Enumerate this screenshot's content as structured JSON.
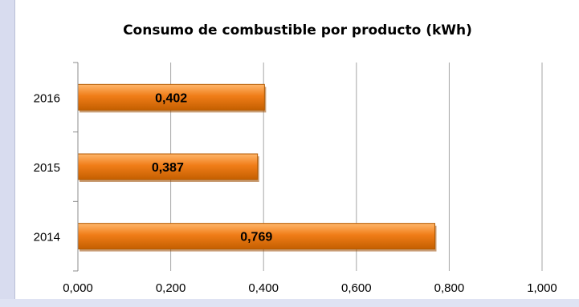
{
  "chart_data": {
    "type": "bar",
    "orientation": "horizontal",
    "title": "Consumo de combustible por producto (kWh)",
    "categories": [
      "2014",
      "2015",
      "2016"
    ],
    "values": [
      0.769,
      0.387,
      0.402
    ],
    "value_labels": [
      "0,769",
      "0,387",
      "0,402"
    ],
    "xlabel": "",
    "ylabel": "",
    "xlim": [
      0,
      1.0
    ],
    "x_ticks": [
      0,
      0.2,
      0.4,
      0.6,
      0.8,
      1.0
    ],
    "x_tick_labels": [
      "0,000",
      "0,200",
      "0,400",
      "0,600",
      "0,800",
      "1,000"
    ],
    "grid": true,
    "legend": "none",
    "bar_color": "#f07d18",
    "bar_edge_color": "#b45a00"
  }
}
